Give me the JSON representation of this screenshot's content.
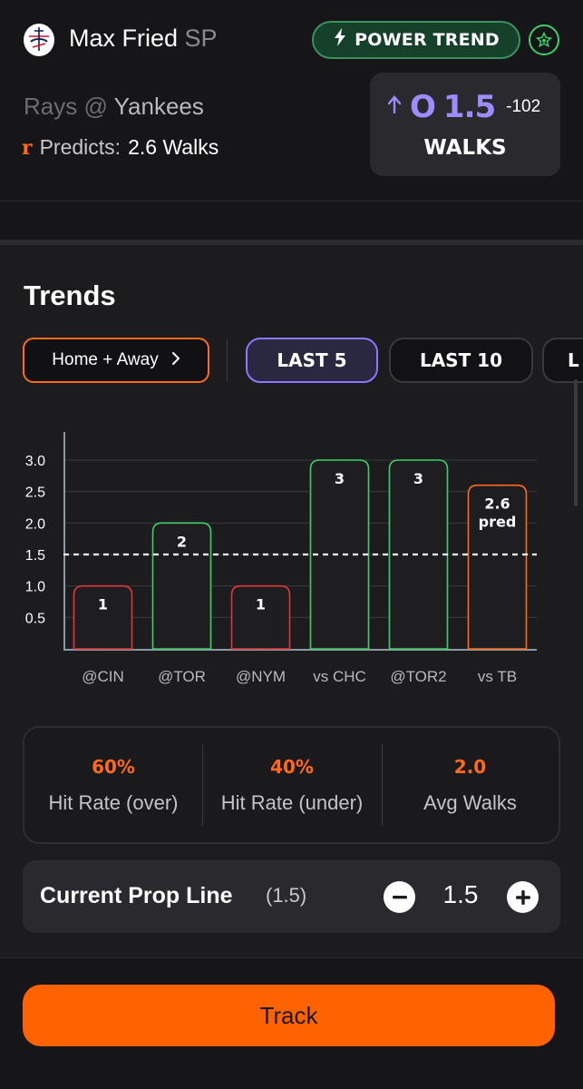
{
  "header": {
    "team_logo_icon": "yankees-logo-icon",
    "player_name": "Max Fried",
    "player_position": "SP",
    "badge": {
      "icon": "lightning-bolt-icon",
      "label": "POWER TREND"
    },
    "star_icon": "star-badge-icon",
    "matchup_away": "Rays @",
    "matchup_home": "Yankees",
    "predicts_label": "Predicts:",
    "predicts_value": "2.6 Walks"
  },
  "line": {
    "direction_icon": "up-arrow-icon",
    "ou": "O",
    "value": "1.5",
    "odds": "-102",
    "unit": "WALKS"
  },
  "trends": {
    "title": "Trends",
    "split_filter": "Home + Away",
    "tabs": [
      "LAST 5",
      "LAST 10",
      "L"
    ],
    "active_tab": "LAST 5"
  },
  "chart_data": {
    "type": "bar",
    "categories": [
      "@CIN",
      "@TOR",
      "@NYM",
      "vs CHC",
      "@TOR2",
      "vs TB"
    ],
    "values": [
      1,
      2,
      1,
      3,
      3,
      2.6
    ],
    "data_labels": [
      "1",
      "2",
      "1",
      "3",
      "3",
      "2.6"
    ],
    "prediction_index": 5,
    "prediction_label": "pred",
    "y_ticks": [
      "0.5",
      "1.0",
      "1.5",
      "2.0",
      "2.5",
      "3.0"
    ],
    "ylim": [
      0,
      3.2
    ],
    "threshold": 1.5,
    "grid": true,
    "colors": {
      "over": "#3fce6a",
      "under": "#e0353b",
      "prediction": "#ff6a1a",
      "threshold": "#ffffff"
    }
  },
  "stats": [
    {
      "value": "60%",
      "label": "Hit Rate (over)"
    },
    {
      "value": "40%",
      "label": "Hit Rate (under)"
    },
    {
      "value": "2.0",
      "label": "Avg Walks"
    }
  ],
  "prop": {
    "label": "Current Prop Line",
    "current": "(1.5)",
    "value": "1.5",
    "minus_icon": "minus-icon",
    "plus_icon": "plus-icon"
  },
  "cta": {
    "label": "Track"
  },
  "colors": {
    "accent": "#ff6a1a",
    "purple": "#9d8cff",
    "green": "#3fce6a",
    "background": "#1c1c1e"
  }
}
